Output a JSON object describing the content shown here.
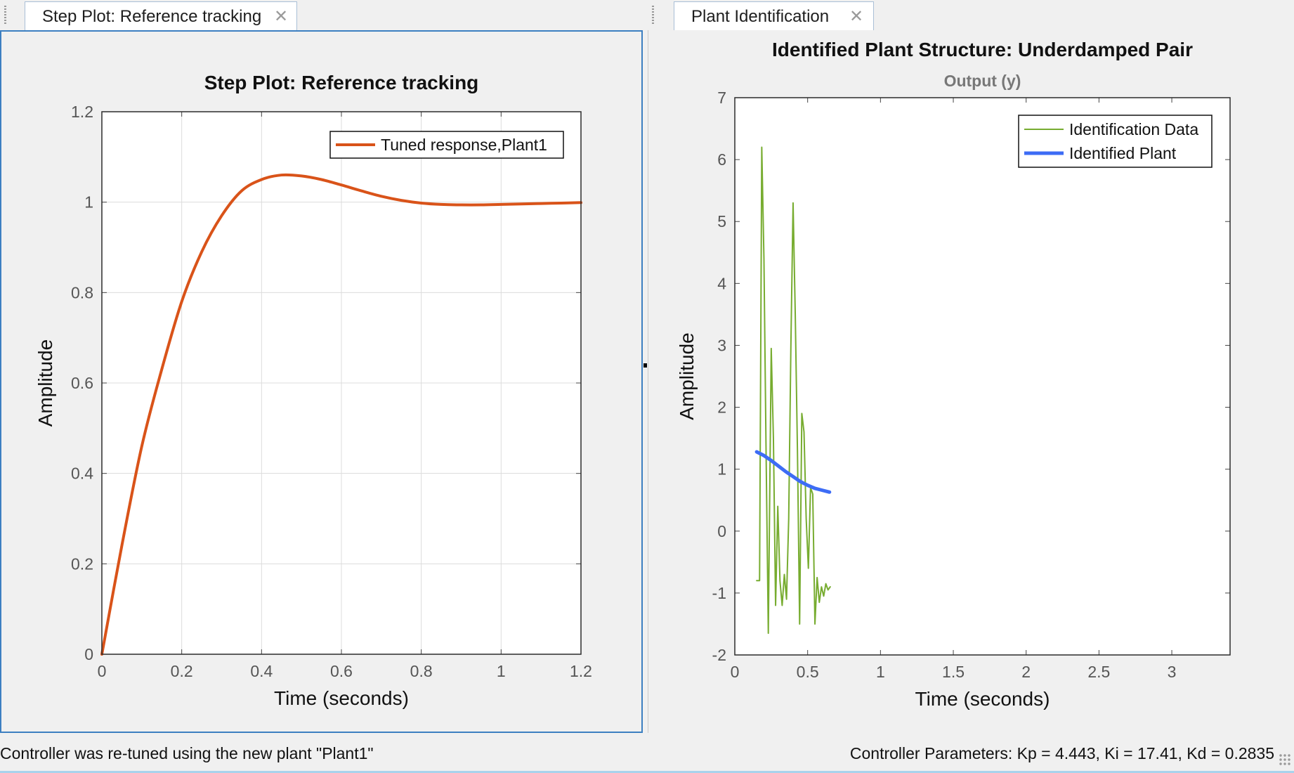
{
  "left_panel": {
    "tab": {
      "label": "Step Plot: Reference tracking",
      "close_glyph": "✕"
    }
  },
  "right_panel": {
    "tab": {
      "label": "Plant Identification",
      "close_glyph": "✕"
    }
  },
  "status_bar": {
    "left_text": "Controller was re-tuned using the new plant \"Plant1\"",
    "right_text": "Controller Parameters: Kp = 4.443, Ki = 17.41, Kd = 0.2835"
  },
  "chart_data": [
    {
      "type": "line",
      "title": "Step Plot: Reference tracking",
      "xlabel": "Time (seconds)",
      "ylabel": "Amplitude",
      "xlim": [
        0,
        1.2
      ],
      "ylim": [
        0,
        1.2
      ],
      "x_ticks": [
        "0",
        "0.2",
        "0.4",
        "0.6",
        "0.8",
        "1",
        "1.2"
      ],
      "y_ticks": [
        "0",
        "0.2",
        "0.4",
        "0.6",
        "0.8",
        "1",
        "1.2"
      ],
      "grid": true,
      "legend_position": "top-right",
      "series": [
        {
          "name": "Tuned response,Plant1",
          "color": "#d95319",
          "x": [
            0,
            0.05,
            0.1,
            0.15,
            0.2,
            0.25,
            0.3,
            0.35,
            0.4,
            0.45,
            0.5,
            0.55,
            0.6,
            0.65,
            0.7,
            0.75,
            0.8,
            0.85,
            0.9,
            0.95,
            1.0,
            1.05,
            1.1,
            1.15,
            1.2
          ],
          "y": [
            0,
            0.24,
            0.46,
            0.63,
            0.78,
            0.89,
            0.97,
            1.025,
            1.05,
            1.06,
            1.058,
            1.05,
            1.038,
            1.025,
            1.013,
            1.004,
            0.998,
            0.995,
            0.994,
            0.994,
            0.995,
            0.996,
            0.997,
            0.998,
            0.999
          ]
        }
      ]
    },
    {
      "type": "line",
      "title": "Identified Plant Structure: Underdamped Pair",
      "subtitle": "Output (y)",
      "xlabel": "Time (seconds)",
      "ylabel": "Amplitude",
      "xlim": [
        0,
        3.4
      ],
      "ylim": [
        -2,
        7
      ],
      "x_ticks": [
        "0",
        "0.5",
        "1",
        "1.5",
        "2",
        "2.5",
        "3"
      ],
      "y_ticks": [
        "-2",
        "-1",
        "0",
        "1",
        "2",
        "3",
        "4",
        "5",
        "6",
        "7"
      ],
      "grid": false,
      "legend_position": "top-right",
      "series": [
        {
          "name": "Identification Data",
          "color": "#77ac30",
          "x": [
            0.15,
            0.17,
            0.185,
            0.2,
            0.215,
            0.23,
            0.25,
            0.265,
            0.28,
            0.295,
            0.31,
            0.325,
            0.34,
            0.355,
            0.37,
            0.385,
            0.4,
            0.415,
            0.43,
            0.445,
            0.46,
            0.475,
            0.49,
            0.505,
            0.52,
            0.535,
            0.55,
            0.565,
            0.58,
            0.595,
            0.61,
            0.625,
            0.64,
            0.655
          ],
          "y": [
            -0.8,
            -0.8,
            6.2,
            4.4,
            1.2,
            -1.65,
            2.95,
            1.5,
            -1.2,
            0.4,
            -0.8,
            -1.2,
            -0.7,
            -1.1,
            0.2,
            3.0,
            5.3,
            3.5,
            1.3,
            -1.5,
            1.9,
            1.6,
            0.2,
            -0.6,
            0.7,
            0.6,
            -1.5,
            -0.75,
            -1.15,
            -0.9,
            -1.05,
            -0.85,
            -0.95,
            -0.9
          ]
        },
        {
          "name": "Identified Plant",
          "color": "#3d6cf5",
          "x": [
            0.15,
            0.2,
            0.25,
            0.3,
            0.35,
            0.4,
            0.45,
            0.5,
            0.55,
            0.6,
            0.65
          ],
          "y": [
            1.28,
            1.22,
            1.14,
            1.05,
            0.96,
            0.88,
            0.8,
            0.74,
            0.69,
            0.66,
            0.63
          ]
        }
      ]
    }
  ]
}
